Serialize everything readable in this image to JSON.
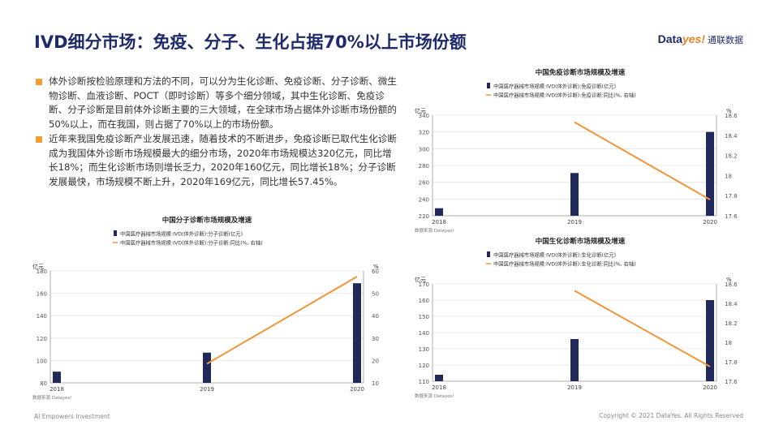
{
  "title": "IVD细分市场：免疫、分子、生化占据70%以上市场份额",
  "logo": {
    "brand": "Data",
    "yes": "yes!",
    "cn": "通联数据"
  },
  "bullets": [
    "体外诊断按检验原理和方法的不同，可以分为生化诊断、免疫诊断、分子诊断、微生物诊断、血液诊断、POCT（即时诊断）等多个细分领域，其中生化诊断、免疫诊断、分子诊断是目前体外诊断主要的三大领域，在全球市场占据体外诊断市场份额的50%以上，而在我国，则占据了70%以上的市场份额。",
    "近年来我国免疫诊断产业发展迅速，随着技术的不断进步，免疫诊断已取代生化诊断成为我国体外诊断市场规模最大的细分市场，2020年市场规模达320亿元，同比增长18%；而生化诊断市场则增长乏力，2020年160亿元，同比增长18%；分子诊断发展最快，市场规模不断上升，2020年169亿元，同比增长57.45%。"
  ],
  "footer": {
    "left": "AI Empowers Investment",
    "right": "Copyright © 2021 DataYes. All Rights Reserved"
  },
  "colors": {
    "bar": "#1f2a5a",
    "line": "#f0953a",
    "title": "#1f2a6b",
    "bullet": "#f0a030"
  },
  "chart_data": [
    {
      "id": "immune",
      "type": "bar",
      "title": "中国免疫诊断市场规模及增速",
      "legend": [
        "中国医疗器械市场规模:IVD(体外诊断):免疫诊断(亿元)",
        "中国医疗器械市场规模:IVD(体外诊断):免疫诊断:同比(%, 右轴)"
      ],
      "y_unit": "亿元",
      "y2_unit": "%",
      "categories": [
        "2018",
        "2019",
        "2020"
      ],
      "values": [
        229,
        271,
        320
      ],
      "line_x": [
        "2019",
        "2020"
      ],
      "line_values": [
        18.53,
        17.76
      ],
      "ylim": [
        220,
        340
      ],
      "yticks": [
        220,
        240,
        260,
        280,
        300,
        320,
        340
      ],
      "y2lim": [
        17.6,
        18.6
      ],
      "y2ticks": [
        "17.6",
        "17.8",
        "18",
        "18.2",
        "18.4",
        "18.6"
      ],
      "source": "数据来源 Datayes!"
    },
    {
      "id": "molecular",
      "type": "bar",
      "title": "中国分子诊断市场规模及增速",
      "legend": [
        "中国医疗器械市场规模:IVD(体外诊断):分子诊断(亿元)",
        "中国医疗器械市场规模:IVD(体外诊断):分子诊断:同比(%, 右轴)"
      ],
      "y_unit": "亿元",
      "y2_unit": "%",
      "categories": [
        "2018",
        "2019",
        "2020"
      ],
      "values": [
        90,
        107,
        169
      ],
      "line_x": [
        "2019",
        "2020"
      ],
      "line_values": [
        18.5,
        57.45
      ],
      "ylim": [
        80,
        180
      ],
      "yticks": [
        80,
        100,
        120,
        140,
        160,
        180
      ],
      "y2lim": [
        10,
        60
      ],
      "y2ticks": [
        "10",
        "20",
        "30",
        "40",
        "50",
        "60"
      ],
      "source": "数据来源 Datayes!"
    },
    {
      "id": "biochem",
      "type": "bar",
      "title": "中国生化诊断市场规模及增速",
      "legend": [
        "中国医疗器械市场规模:IVD(体外诊断):生化诊断(亿元)",
        "中国医疗器械市场规模:IVD(体外诊断):生化诊断:同比(%, 右轴)"
      ],
      "y_unit": "亿元",
      "y2_unit": "%",
      "categories": [
        "2018",
        "2019",
        "2020"
      ],
      "values": [
        114,
        136,
        160
      ],
      "line_x": [
        "2019",
        "2020"
      ],
      "line_values": [
        18.53,
        17.75
      ],
      "ylim": [
        110,
        170
      ],
      "yticks": [
        110,
        120,
        130,
        140,
        150,
        160,
        170
      ],
      "y2lim": [
        17.6,
        18.6
      ],
      "y2ticks": [
        "17.6",
        "17.8",
        "18",
        "18.2",
        "18.4",
        "18.6"
      ],
      "source": "数据来源 Datayes!"
    }
  ]
}
